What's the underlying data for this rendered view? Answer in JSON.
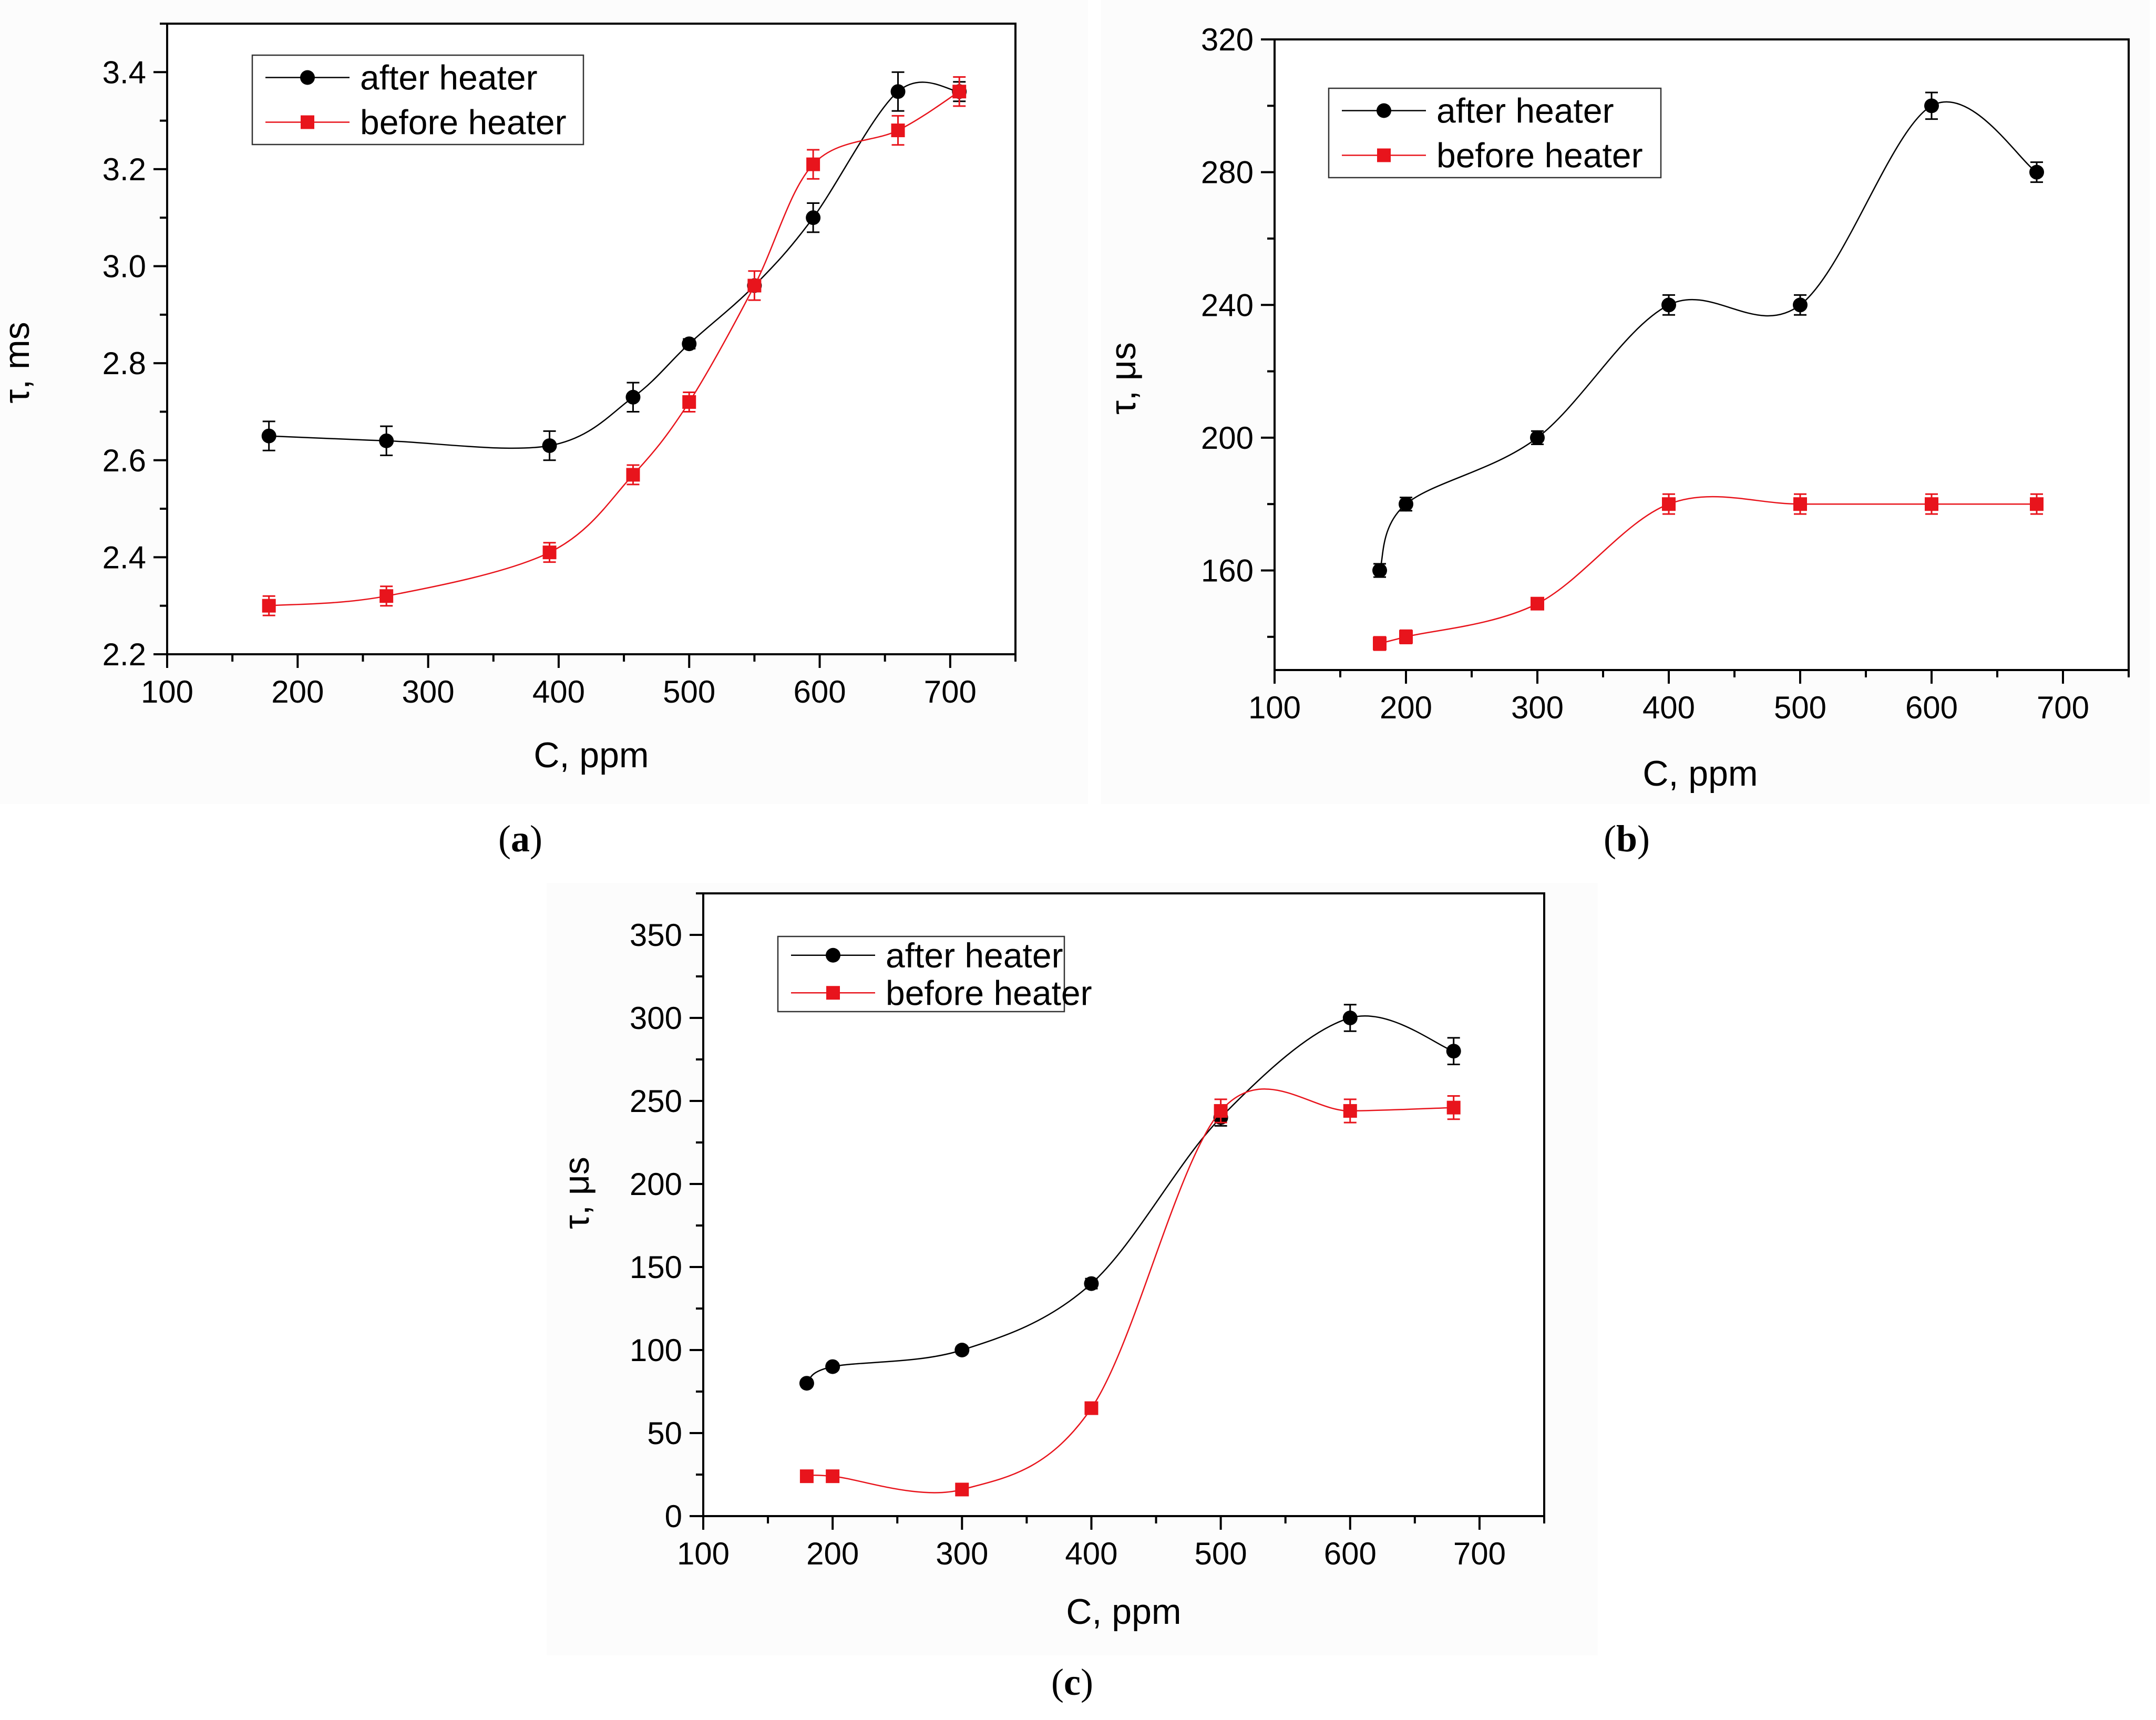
{
  "chart_data": [
    {
      "type": "line",
      "panel_label": "(a)",
      "caption_letter": "a",
      "xlabel": "C, ppm",
      "ylabel": "τ, ms",
      "xlim": [
        100,
        750
      ],
      "ylim": [
        2.2,
        3.5
      ],
      "x_ticks": [
        100,
        200,
        300,
        400,
        500,
        600,
        700
      ],
      "y_ticks": [
        2.2,
        2.4,
        2.6,
        2.8,
        3.0,
        3.2,
        3.4
      ],
      "y_tick_labels": [
        "2.2",
        "2.4",
        "2.6",
        "2.8",
        "3.0",
        "3.2",
        "3.4"
      ],
      "legend": "top-left",
      "series": [
        {
          "name": "after heater",
          "color": "#000000",
          "marker": "circle",
          "x": [
            178,
            268,
            393,
            457,
            500,
            550,
            595,
            660,
            707
          ],
          "y": [
            2.65,
            2.64,
            2.63,
            2.73,
            2.84,
            2.96,
            3.1,
            3.36,
            3.36
          ],
          "error": [
            0.03,
            0.03,
            0.03,
            0.03,
            0.01,
            0.01,
            0.03,
            0.04,
            0.02
          ]
        },
        {
          "name": "before heater",
          "color": "#e8141c",
          "marker": "square",
          "x": [
            178,
            268,
            393,
            457,
            500,
            550,
            595,
            660,
            707
          ],
          "y": [
            2.3,
            2.32,
            2.41,
            2.57,
            2.72,
            2.96,
            3.21,
            3.28,
            3.36
          ],
          "error": [
            0.02,
            0.02,
            0.02,
            0.02,
            0.02,
            0.03,
            0.03,
            0.03,
            0.03
          ]
        }
      ]
    },
    {
      "type": "line",
      "panel_label": "(b)",
      "caption_letter": "b",
      "xlabel": "C, ppm",
      "ylabel": "τ, μs",
      "xlim": [
        100,
        750
      ],
      "ylim": [
        130,
        320
      ],
      "x_ticks": [
        100,
        200,
        300,
        400,
        500,
        600,
        700
      ],
      "y_ticks": [
        160,
        200,
        240,
        280,
        320
      ],
      "y_tick_labels": [
        "160",
        "200",
        "240",
        "280",
        "320"
      ],
      "legend": "top-left",
      "series": [
        {
          "name": "after heater",
          "color": "#000000",
          "marker": "circle",
          "x": [
            180,
            200,
            300,
            400,
            500,
            600,
            680
          ],
          "y": [
            160,
            180,
            200,
            240,
            240,
            300,
            280
          ],
          "error": [
            2,
            2,
            2,
            3,
            3,
            4,
            3
          ]
        },
        {
          "name": "before heater",
          "color": "#e8141c",
          "marker": "square",
          "x": [
            180,
            200,
            300,
            400,
            500,
            600,
            680
          ],
          "y": [
            138,
            140,
            150,
            180,
            180,
            180,
            180
          ],
          "error": [
            2,
            2,
            1,
            3,
            3,
            3,
            3
          ]
        }
      ]
    },
    {
      "type": "line",
      "panel_label": "(c)",
      "caption_letter": "c",
      "xlabel": "C, ppm",
      "ylabel": "τ, μs",
      "xlim": [
        100,
        750
      ],
      "ylim": [
        0,
        375
      ],
      "x_ticks": [
        100,
        200,
        300,
        400,
        500,
        600,
        700
      ],
      "y_ticks": [
        0,
        50,
        100,
        150,
        200,
        250,
        300,
        350
      ],
      "y_tick_labels": [
        "0",
        "50",
        "100",
        "150",
        "200",
        "250",
        "300",
        "350"
      ],
      "legend": "top-left",
      "series": [
        {
          "name": "after heater",
          "color": "#000000",
          "marker": "circle",
          "x": [
            180,
            200,
            300,
            400,
            500,
            600,
            680
          ],
          "y": [
            80,
            90,
            100,
            140,
            240,
            300,
            280
          ],
          "error": [
            2,
            2,
            2,
            3,
            5,
            8,
            8
          ]
        },
        {
          "name": "before heater",
          "color": "#e8141c",
          "marker": "square",
          "x": [
            180,
            200,
            300,
            400,
            500,
            600,
            680
          ],
          "y": [
            24,
            24,
            16,
            65,
            244,
            244,
            246
          ],
          "error": [
            2,
            2,
            2,
            2,
            7,
            7,
            7
          ]
        }
      ]
    }
  ]
}
